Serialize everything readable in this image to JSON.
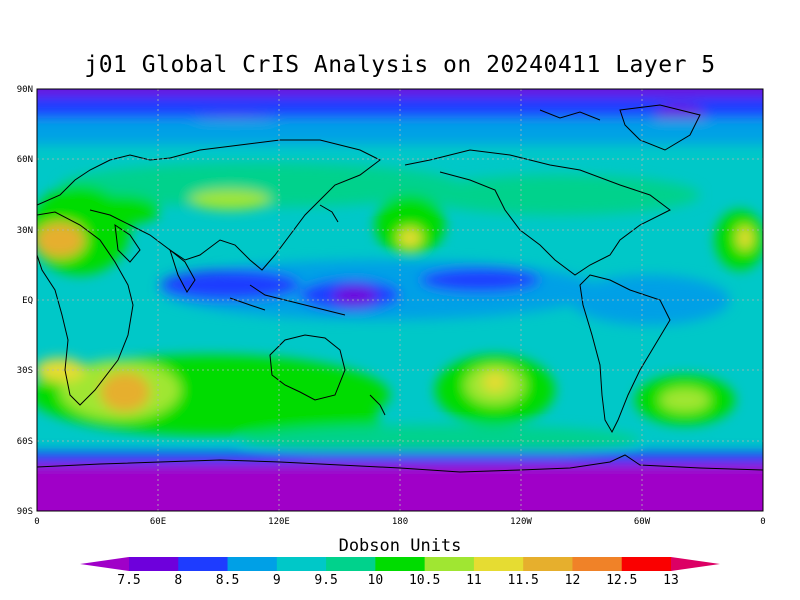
{
  "title": "j01 Global CrIS Analysis on 20240411 Layer 5",
  "colorbar": {
    "label": "Dobson Units",
    "ticks": [
      "7.5",
      "8",
      "8.5",
      "9",
      "9.5",
      "10",
      "10.5",
      "11",
      "11.5",
      "12",
      "12.5",
      "13"
    ],
    "colors": [
      "#a000c8",
      "#6e00dc",
      "#1e3cff",
      "#00a0e6",
      "#00c8c8",
      "#00d28c",
      "#00dc00",
      "#a0e632",
      "#e6dc32",
      "#e6af2d",
      "#f08228",
      "#fa0000",
      "#dc0064"
    ]
  },
  "lat_labels": [
    "90N",
    "60N",
    "30N",
    "EQ",
    "30S",
    "60S",
    "90S"
  ],
  "lon_labels": [
    "0",
    "60E",
    "120E",
    "180",
    "120W",
    "60W",
    "0"
  ]
}
